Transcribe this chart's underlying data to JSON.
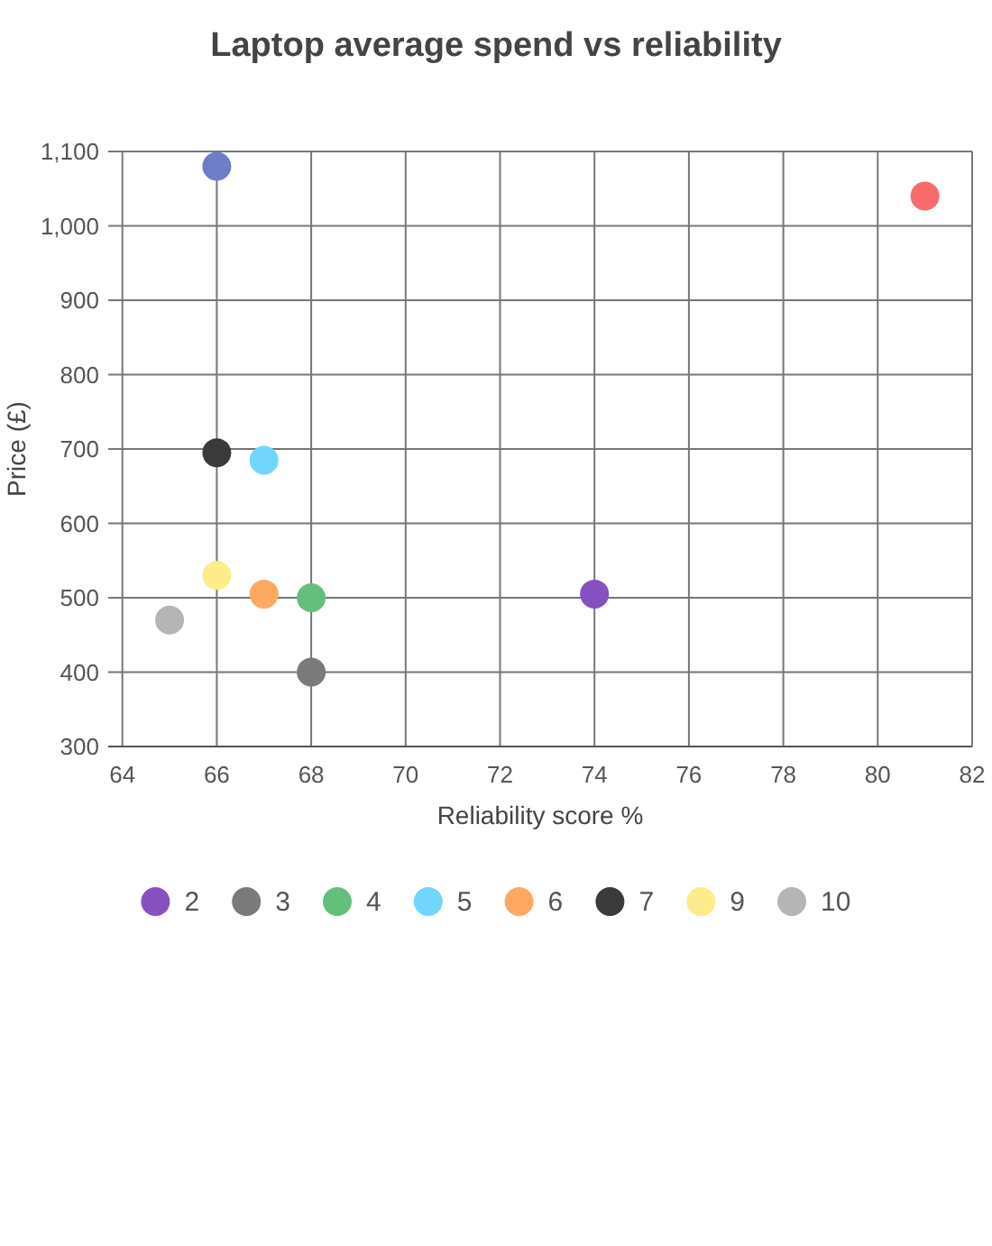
{
  "chart_data": {
    "type": "scatter",
    "title": "Laptop average spend vs reliability",
    "xlabel": "Reliability score %",
    "ylabel": "Price (£)",
    "xlim": [
      63.7,
      82
    ],
    "xticks": [
      64,
      66,
      68,
      70,
      72,
      74,
      76,
      78,
      80,
      82
    ],
    "ylim": [
      300,
      1100
    ],
    "yticks": [
      300,
      400,
      500,
      600,
      700,
      800,
      900,
      {
        "value": 1000,
        "label": "1,000"
      },
      {
        "value": 1100,
        "label": "1,100"
      }
    ],
    "grid": true,
    "legend": "bottom",
    "marker": "circle",
    "series": [
      {
        "color": "#f96a6a",
        "x": [
          81
        ],
        "values": [
          1040
        ]
      },
      {
        "name": "2",
        "color": "#8750c0",
        "x": [
          74
        ],
        "values": [
          505
        ]
      },
      {
        "name": "3",
        "color": "#7a7a7a",
        "x": [
          68
        ],
        "values": [
          400
        ]
      },
      {
        "name": "4",
        "color": "#64bf7d",
        "x": [
          68
        ],
        "values": [
          500
        ]
      },
      {
        "name": "5",
        "color": "#72d6fc",
        "x": [
          67
        ],
        "values": [
          685
        ]
      },
      {
        "name": "6",
        "color": "#ffa862",
        "x": [
          67
        ],
        "values": [
          505
        ]
      },
      {
        "name": "7",
        "color": "#3a3a3a",
        "x": [
          66
        ],
        "values": [
          695
        ]
      },
      {
        "color": "#6e7dc6",
        "x": [
          66
        ],
        "values": [
          1080
        ]
      },
      {
        "name": "9",
        "color": "#fdeb8c",
        "x": [
          66
        ],
        "values": [
          530
        ]
      },
      {
        "name": "10",
        "color": "#b5b5b5",
        "x": [
          65
        ],
        "values": [
          470
        ]
      }
    ]
  }
}
